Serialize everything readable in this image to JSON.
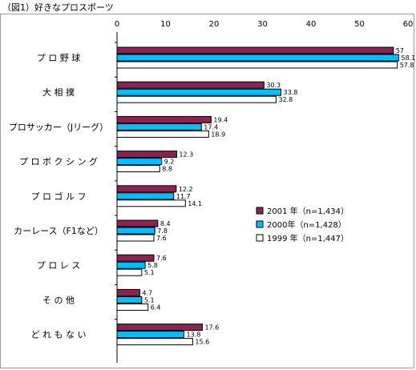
{
  "figure_title": "（図1）好きなプロスポーツ",
  "chart_data": {
    "type": "bar",
    "orientation": "horizontal",
    "title": "",
    "xlabel": "",
    "ylabel": "",
    "unit": "(%)",
    "xlim": [
      0,
      60
    ],
    "ticks": [
      "0",
      "10",
      "20",
      "30",
      "40",
      "50",
      "60"
    ],
    "grid": false,
    "legend_position": "right",
    "categories": [
      "プ ロ 野 球",
      "大 相 撲",
      "プロサッカー（Jリーグ）",
      "プ ロ ボ ク シ ン グ",
      "プ ロ ゴ ル フ",
      "カーレース（F1など）",
      "プ ロ レ ス",
      "そ の 他",
      "ど れ も な い"
    ],
    "series": [
      {
        "name": "2001 年（n=1,434）",
        "color": "#8b2252",
        "values": [
          57,
          30.3,
          19.4,
          12.3,
          12.2,
          8.4,
          7.6,
          4.7,
          17.6
        ],
        "labels": [
          "57",
          "30.3",
          "19.4",
          "12.3",
          "12.2",
          "8.4",
          "7.6",
          "4.7",
          "17.6"
        ]
      },
      {
        "name": "2000年（n=1,428）",
        "color": "#00bfff",
        "values": [
          58.1,
          33.8,
          17.4,
          9.2,
          11.7,
          7.8,
          5.8,
          5.1,
          13.8
        ],
        "labels": [
          "58.1",
          "33.8",
          "17.4",
          "9.2",
          "11.7",
          "7.8",
          "5.8",
          "5.1",
          "13.8"
        ]
      },
      {
        "name": "1999 年（n=1,447）",
        "color": "#ffffff",
        "values": [
          57.8,
          32.8,
          18.9,
          8.8,
          14.1,
          7.6,
          5.1,
          6.4,
          15.6
        ],
        "labels": [
          "57.8",
          "32.8",
          "18.9",
          "8.8",
          "14.1",
          "7.6",
          "5.1",
          "6.4",
          "15.6"
        ]
      }
    ]
  }
}
